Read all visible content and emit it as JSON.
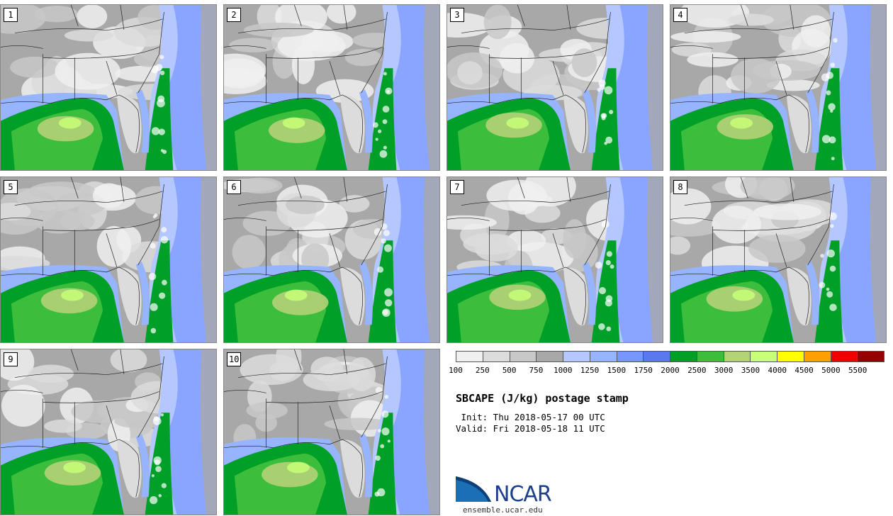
{
  "panels": [
    {
      "number": "1"
    },
    {
      "number": "2"
    },
    {
      "number": "3"
    },
    {
      "number": "4"
    },
    {
      "number": "5"
    },
    {
      "number": "6"
    },
    {
      "number": "7"
    },
    {
      "number": "8"
    },
    {
      "number": "9"
    },
    {
      "number": "10"
    }
  ],
  "colorbar": {
    "colors": [
      "#f0f0f0",
      "#dcdcdc",
      "#c8c8c8",
      "#a8a8a8",
      "#b4c8ff",
      "#96b4ff",
      "#7896ff",
      "#5a78f0",
      "#00a028",
      "#3cbe3c",
      "#b4d278",
      "#c8ff78",
      "#ffff00",
      "#ffa000",
      "#f00000",
      "#960000"
    ],
    "labels": [
      "100",
      "250",
      "500",
      "750",
      "1000",
      "1250",
      "1500",
      "1750",
      "2000",
      "2500",
      "3000",
      "3500",
      "4000",
      "4500",
      "5000",
      "5500"
    ]
  },
  "title": "SBCAPE (J/kg) postage stamp",
  "init": " Init: Thu 2018-05-17 00 UTC",
  "valid": "Valid: Fri 2018-05-18 11 UTC",
  "logo": {
    "name": "NCAR",
    "url": "ensemble.ucar.edu",
    "color": "#1c3f8c",
    "swoosh_color": "#1a6fb5"
  }
}
